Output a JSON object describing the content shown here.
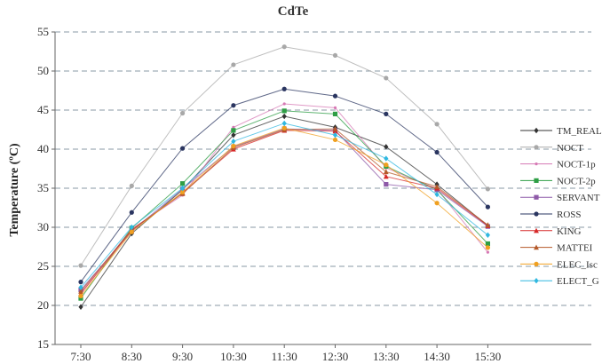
{
  "chart_data": {
    "type": "line",
    "title": "CdTe",
    "xlabel": "",
    "ylabel": "Temperature (ºC)",
    "categories": [
      "7:30",
      "8:30",
      "9:30",
      "10:30",
      "11:30",
      "12:30",
      "13:30",
      "14:30",
      "15:30"
    ],
    "ylim": [
      15,
      55
    ],
    "yticks": [
      15,
      20,
      25,
      30,
      35,
      40,
      45,
      50,
      55
    ],
    "grid": "horizontal dashed",
    "legend_position": "right",
    "series": [
      {
        "name": "TM_REAL",
        "color": "#333333",
        "marker": "diamond",
        "values": [
          19.8,
          29.2,
          34.8,
          41.8,
          44.2,
          42.8,
          40.3,
          35.5,
          30.2
        ]
      },
      {
        "name": "NOCT",
        "color": "#a8a8a8",
        "marker": "circle",
        "values": [
          25.1,
          35.3,
          44.6,
          50.8,
          53.1,
          52.0,
          49.1,
          43.2,
          34.9
        ]
      },
      {
        "name": "NOCT-1p",
        "color": "#d678b4",
        "marker": "dot",
        "values": [
          21.6,
          29.8,
          34.1,
          42.8,
          45.8,
          45.3,
          37.6,
          34.9,
          26.8
        ]
      },
      {
        "name": "NOCT-2p",
        "color": "#2e9e45",
        "marker": "square",
        "values": [
          20.9,
          29.9,
          35.6,
          42.4,
          44.9,
          44.5,
          37.8,
          34.8,
          27.9
        ]
      },
      {
        "name": "SERVANT",
        "color": "#8e5aa8",
        "marker": "square",
        "values": [
          22.0,
          29.5,
          34.9,
          40.3,
          42.6,
          42.4,
          35.5,
          34.8,
          30.1
        ]
      },
      {
        "name": "ROSS",
        "color": "#2a3560",
        "marker": "circle",
        "values": [
          23.0,
          31.9,
          40.1,
          45.6,
          47.7,
          46.8,
          44.5,
          39.6,
          32.6
        ]
      },
      {
        "name": "KING",
        "color": "#d62828",
        "marker": "triangle",
        "values": [
          21.5,
          29.6,
          34.4,
          40.0,
          42.4,
          42.3,
          36.5,
          35.0,
          30.2
        ]
      },
      {
        "name": "MATTEI",
        "color": "#b45a2a",
        "marker": "triangle",
        "values": [
          21.8,
          29.7,
          34.3,
          40.2,
          42.5,
          42.6,
          37.1,
          35.2,
          30.3
        ]
      },
      {
        "name": "ELEC_Isc",
        "color": "#f0a020",
        "marker": "circle",
        "values": [
          21.2,
          29.4,
          34.5,
          40.4,
          42.7,
          41.2,
          38.0,
          33.1,
          27.4
        ]
      },
      {
        "name": "ELECT_G",
        "color": "#30b8e0",
        "marker": "diamond",
        "values": [
          22.3,
          30.0,
          35.0,
          41.0,
          43.3,
          41.8,
          38.8,
          34.2,
          29.0
        ]
      }
    ]
  }
}
